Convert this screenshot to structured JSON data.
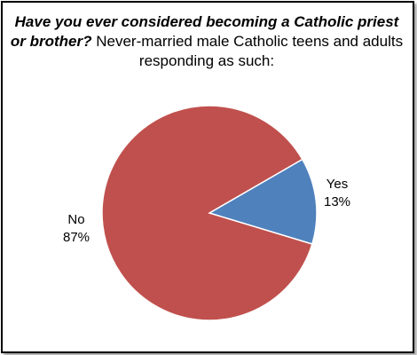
{
  "title": {
    "question": "Have you ever considered becoming a Catholic priest or brother?",
    "rest": "Never-married male Catholic teens and adults responding as such:"
  },
  "chart_data": {
    "type": "pie",
    "title": "Have you ever considered becoming a Catholic priest or brother? Never-married male Catholic teens and adults responding as such:",
    "slices": [
      {
        "label": "Yes",
        "value": 13,
        "value_label": "13%",
        "color": "#4f81bd"
      },
      {
        "label": "No",
        "value": 87,
        "value_label": "87%",
        "color": "#c0504d"
      }
    ],
    "legend": "none"
  }
}
